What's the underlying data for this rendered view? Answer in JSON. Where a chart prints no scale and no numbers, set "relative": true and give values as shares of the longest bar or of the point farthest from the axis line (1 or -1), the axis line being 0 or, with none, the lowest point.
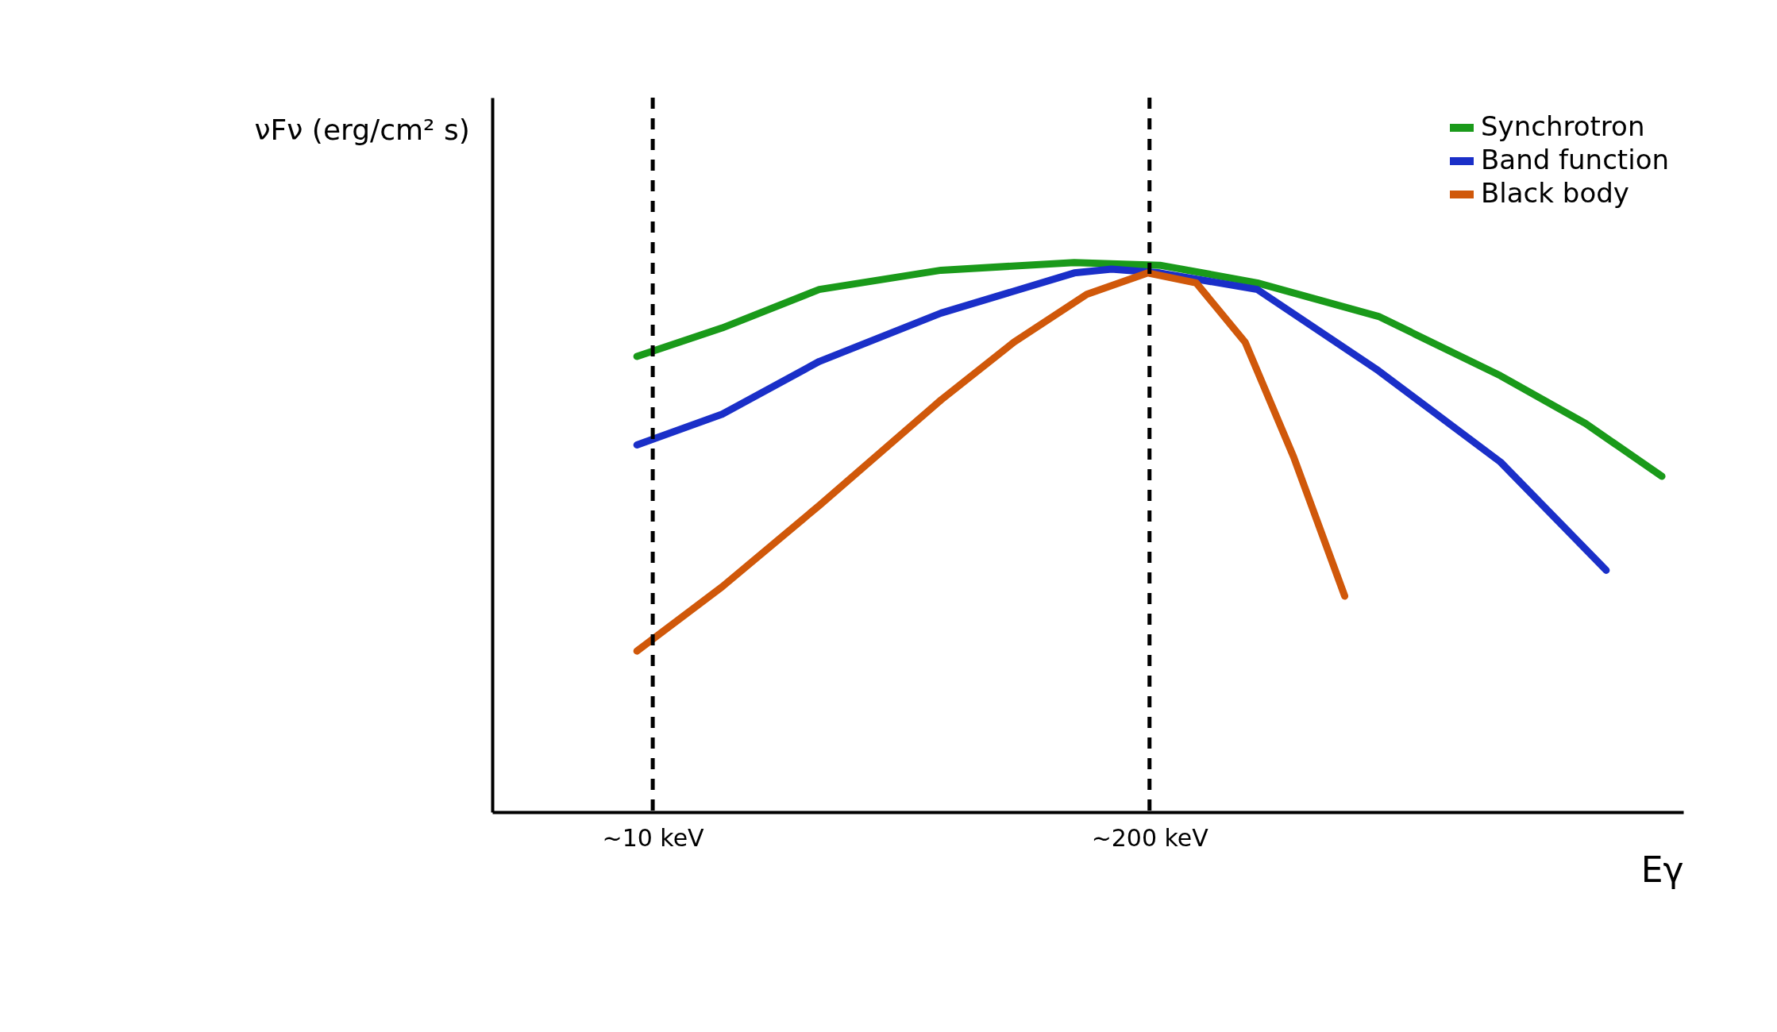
{
  "chart_data": {
    "type": "line",
    "relative": true,
    "xlabel": "Eγ",
    "ylabel": "νFν (erg/cm² s)",
    "log": "x",
    "xlim": [
      3.8,
      5000
    ],
    "xticks": [
      {
        "value": 10,
        "label": "~10 keV"
      },
      {
        "value": 200,
        "label": "~200 keV"
      }
    ],
    "grid": false,
    "legend": "top right",
    "marker": "none",
    "line_style": "solid",
    "ref_lines": [
      {
        "axis": "x",
        "value": 10,
        "color": "#000000",
        "line_style": "dashed"
      },
      {
        "axis": "x",
        "value": 200,
        "color": "#000000",
        "line_style": "dashed"
      }
    ],
    "series": [
      {
        "name": "Synchrotron",
        "color": "#1a9a1a",
        "x": [
          9.09,
          15.2,
          27.3,
          56.9,
          127,
          213,
          383,
          796,
          1660,
          2773,
          4395
        ],
        "values": [
          0.829,
          0.881,
          0.951,
          0.986,
          1.0,
          0.995,
          0.963,
          0.902,
          0.794,
          0.707,
          0.611
        ]
      },
      {
        "name": "Band function",
        "color": "#1a2fc8",
        "x": [
          9.09,
          15.2,
          27.3,
          56.9,
          127,
          159,
          213,
          383,
          796,
          1660,
          3141
        ],
        "values": [
          0.668,
          0.724,
          0.82,
          0.908,
          0.981,
          0.988,
          0.981,
          0.951,
          0.803,
          0.637,
          0.44
        ]
      },
      {
        "name": "Black body",
        "color": "#d0580a",
        "x": [
          9.09,
          15.2,
          27.3,
          56.9,
          88.3,
          137,
          198,
          265,
          356,
          477,
          649
        ],
        "values": [
          0.293,
          0.41,
          0.558,
          0.75,
          0.855,
          0.942,
          0.981,
          0.963,
          0.855,
          0.646,
          0.393
        ]
      }
    ]
  }
}
